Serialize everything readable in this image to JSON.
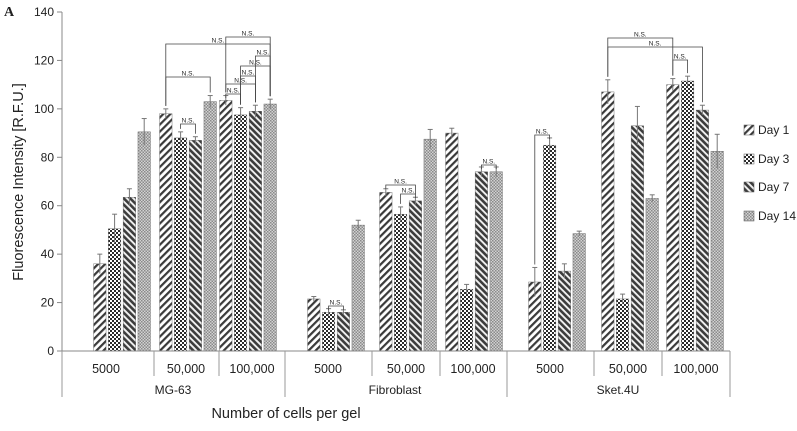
{
  "panel_label": "A",
  "chart_data": {
    "type": "bar",
    "title": "",
    "xlabel": "Number of cells per gel",
    "ylabel": "Fluorescence Intensity [R.F.U.]",
    "ylim": [
      0,
      140
    ],
    "yticks": [
      "0",
      "20",
      "40",
      "60",
      "80",
      "100",
      "120",
      "140"
    ],
    "grid": false,
    "legend_position": "right",
    "groups": [
      {
        "name": "MG-63",
        "categories": [
          "5000",
          "50,000",
          "100,000"
        ]
      },
      {
        "name": "Fibroblast",
        "categories": [
          "5000",
          "50,000",
          "100,000"
        ]
      },
      {
        "name": "Sket.4U",
        "categories": [
          "5000",
          "50,000",
          "100,000"
        ]
      }
    ],
    "series": [
      {
        "name": "Day 1",
        "values": [
          36,
          98,
          103.5,
          21.5,
          65.5,
          90,
          28.5,
          107,
          110
        ]
      },
      {
        "name": "Day 3",
        "values": [
          50.5,
          88,
          97.5,
          16,
          56.5,
          25.5,
          85,
          21.5,
          111.5
        ]
      },
      {
        "name": "Day 7",
        "values": [
          63.5,
          87,
          99,
          16,
          62,
          74,
          33,
          93,
          99.5
        ]
      },
      {
        "name": "Day 14",
        "values": [
          90.5,
          103,
          102,
          52,
          87.5,
          74,
          48.5,
          63,
          82.5
        ]
      }
    ],
    "errors": [
      [
        4,
        2,
        2,
        1,
        1.5,
        2,
        6,
        5,
        2.5
      ],
      [
        6,
        2.5,
        3,
        1.5,
        3,
        2,
        3,
        2,
        2
      ],
      [
        3.5,
        1.5,
        2.5,
        1,
        1.5,
        2,
        3,
        8,
        2
      ],
      [
        5.5,
        2.5,
        2,
        2,
        4,
        2,
        1,
        1.5,
        7
      ]
    ],
    "annotations": {
      "ns_label": "N.S."
    }
  }
}
